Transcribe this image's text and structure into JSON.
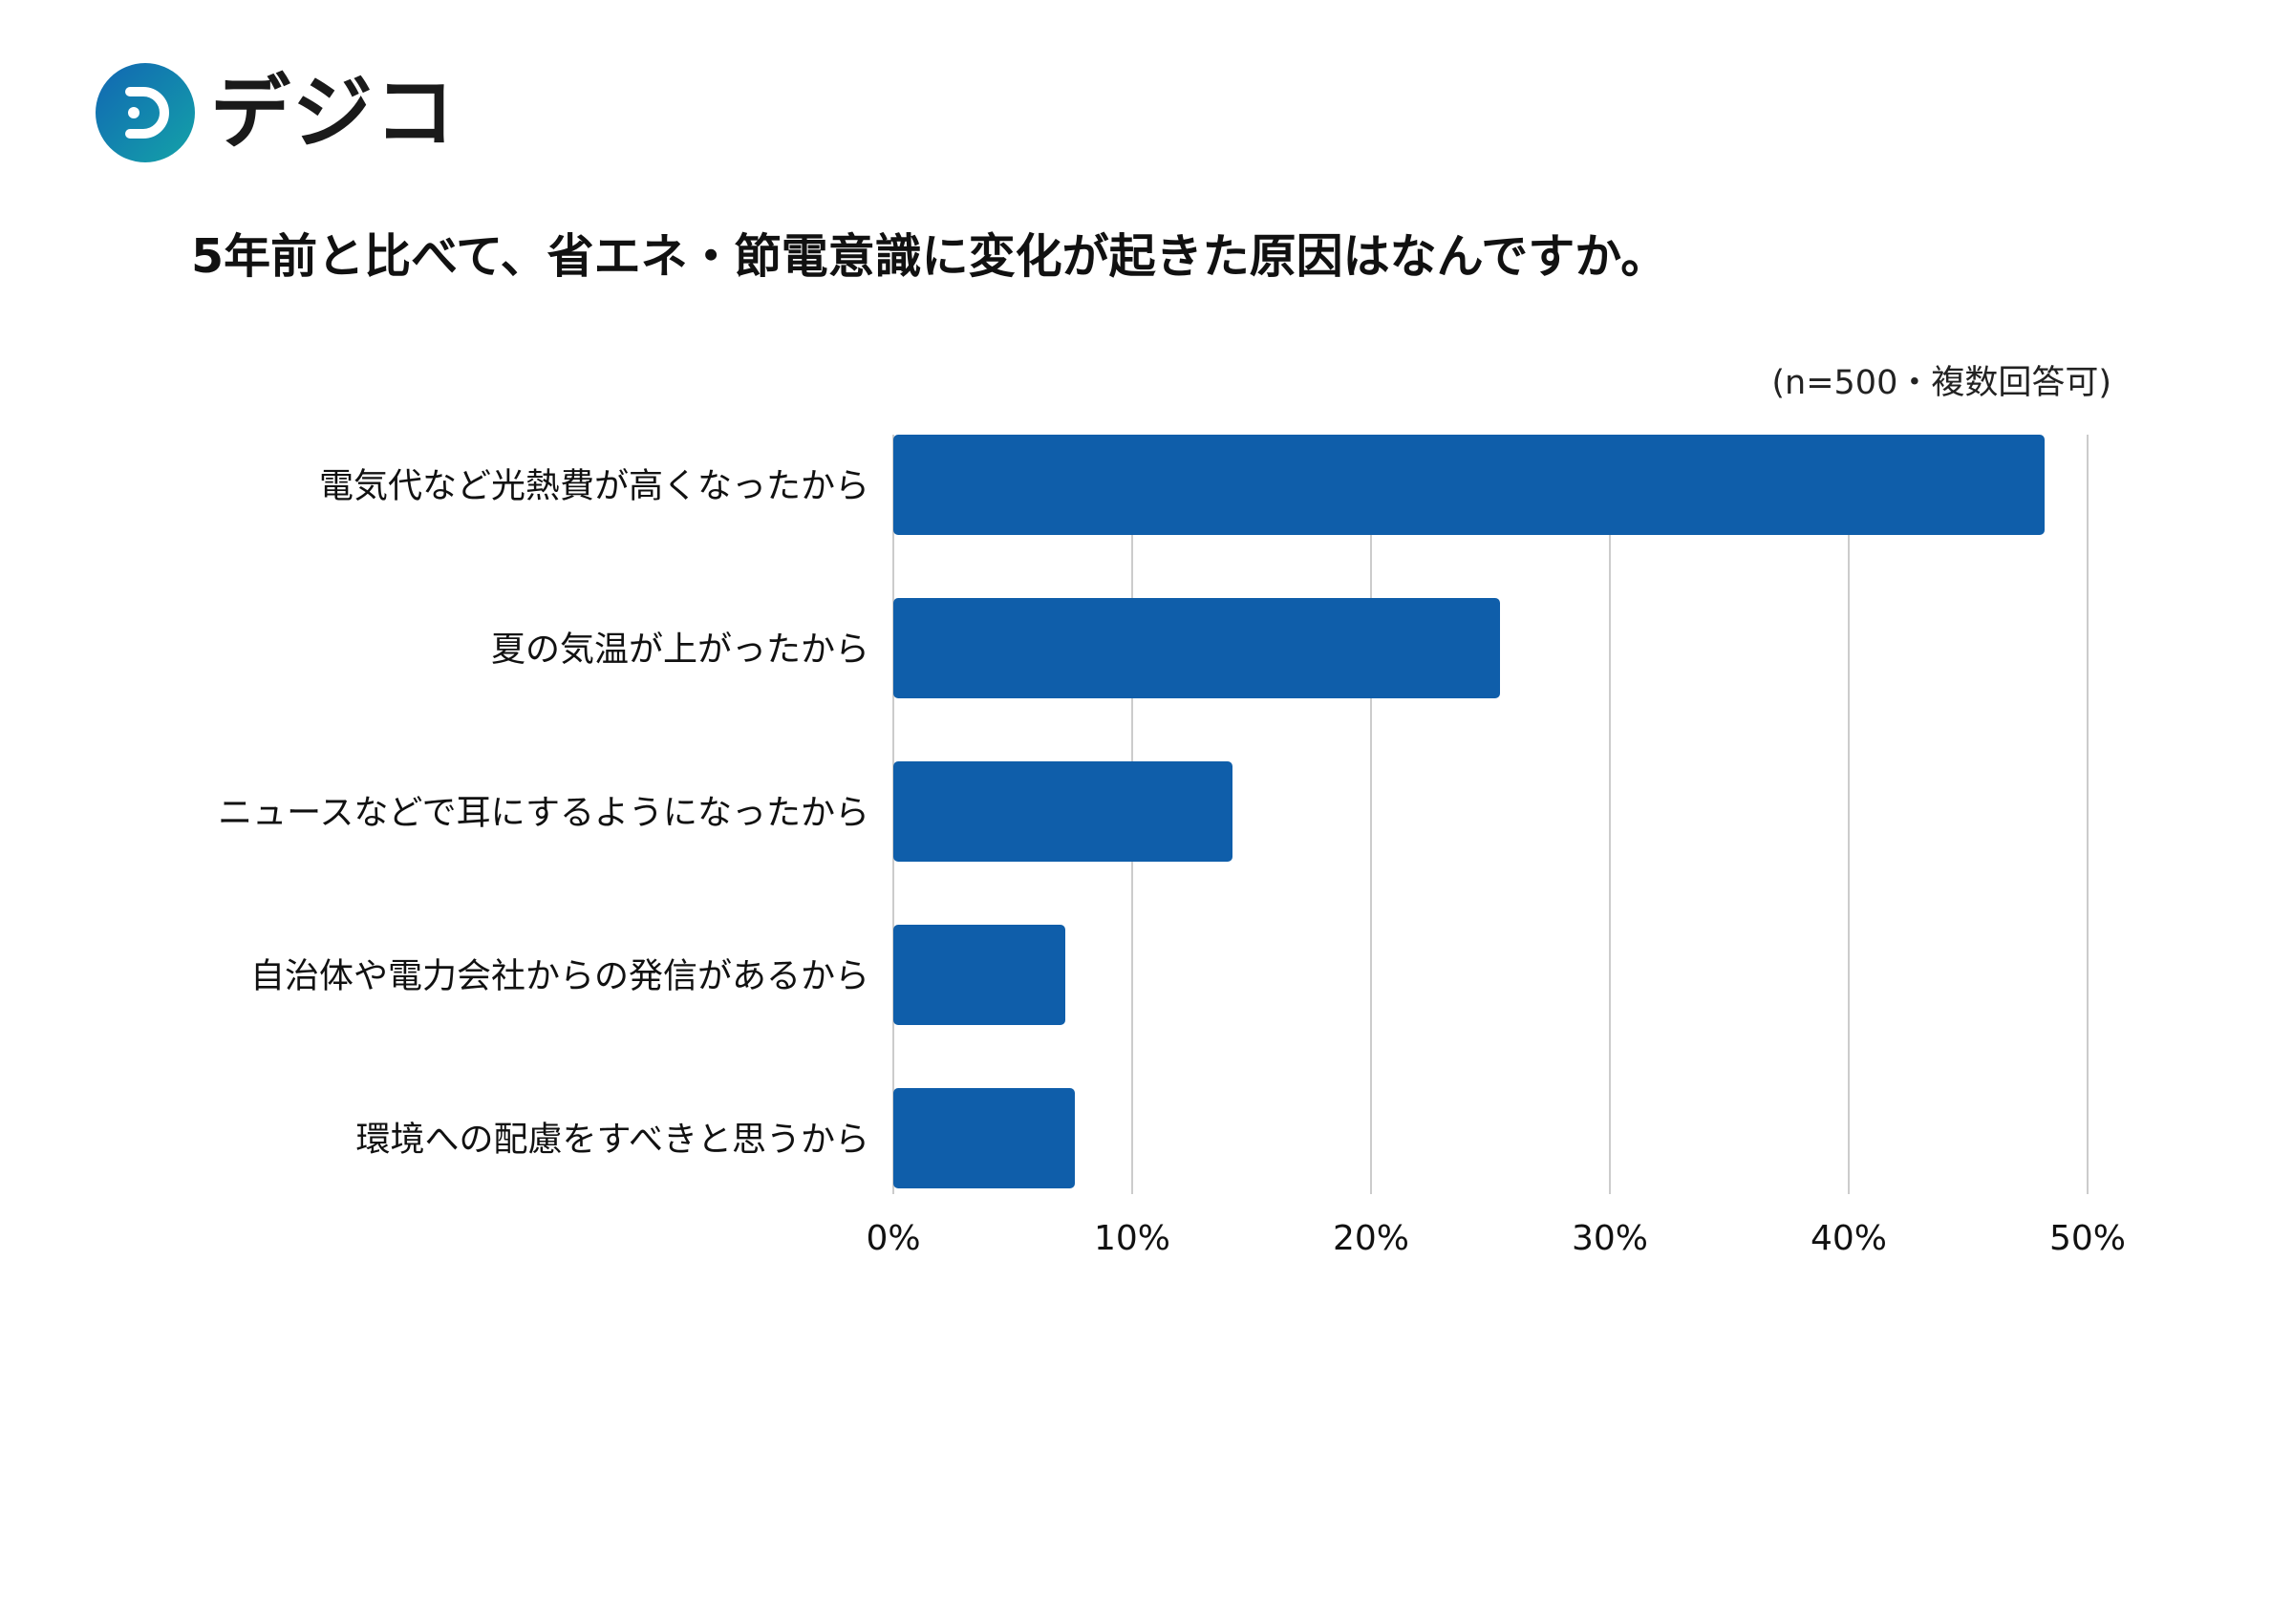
{
  "brand": {
    "name": "デジコ",
    "colors": {
      "gradient_start": "#1166b3",
      "gradient_end": "#14a3a8",
      "dots": [
        "#1a9fbf",
        "#1a6fc4",
        "#1a6fc4"
      ]
    }
  },
  "note": "(n=500・複数回答可)",
  "chart_data": {
    "type": "bar",
    "orientation": "horizontal",
    "title": "5年前と比べて、省エネ・節電意識に変化が起きた原因はなんですか。",
    "categories": [
      "電気代など光熱費が高くなったから",
      "夏の気温が上がったから",
      "ニュースなどで耳にするようになったから",
      "自治体や電力会社からの発信があるから",
      "環境への配慮をすべきと思うから"
    ],
    "values": [
      48.2,
      25.4,
      14.2,
      7.2,
      7.6
    ],
    "value_unit": "%",
    "xlim": [
      0,
      50
    ],
    "xticks": [
      "0%",
      "10%",
      "20%",
      "30%",
      "40%",
      "50%"
    ],
    "grid": "vertical",
    "legend": "none",
    "bar_color": "#0f5eaa",
    "grid_color": "#cccccc"
  }
}
